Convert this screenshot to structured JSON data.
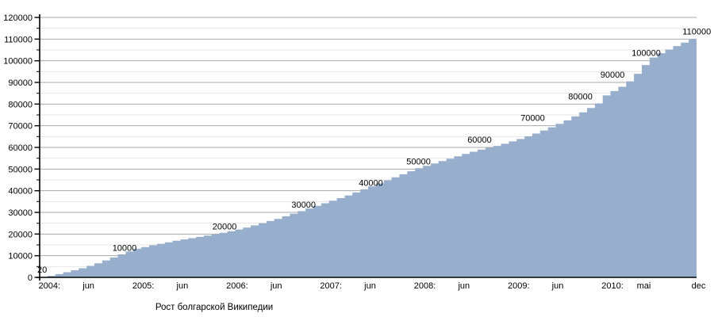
{
  "page": {
    "background": "#ffffff"
  },
  "chart_data": {
    "type": "area",
    "title": "Рост болгарской Википедии",
    "xlabel": "",
    "ylabel": "",
    "x_start": "2004-01",
    "x_end": "2010-12",
    "step": "monthly",
    "ylim": [
      0,
      120000
    ],
    "y_major_step": 10000,
    "y_minor_step": 5000,
    "grid": "on",
    "legend": "none",
    "y_tick_labels": [
      "0",
      "10000",
      "20000",
      "30000",
      "40000",
      "50000",
      "60000",
      "70000",
      "80000",
      "90000",
      "100000",
      "110000",
      "120000"
    ],
    "x_tick_labels": [
      {
        "label": "2004:",
        "month_index": 0
      },
      {
        "label": "jun",
        "month_index": 5
      },
      {
        "label": "2005:",
        "month_index": 12
      },
      {
        "label": "jun",
        "month_index": 17
      },
      {
        "label": "2006:",
        "month_index": 24
      },
      {
        "label": "jun",
        "month_index": 29
      },
      {
        "label": "2007:",
        "month_index": 36
      },
      {
        "label": "jun",
        "month_index": 41
      },
      {
        "label": "2008:",
        "month_index": 48
      },
      {
        "label": "jun",
        "month_index": 53
      },
      {
        "label": "2009:",
        "month_index": 60
      },
      {
        "label": "jun",
        "month_index": 65
      },
      {
        "label": "2010:",
        "month_index": 72
      },
      {
        "label": "mai",
        "month_index": 76
      },
      {
        "label": "dec",
        "month_index": 83
      }
    ],
    "values": [
      20,
      700,
      1500,
      2400,
      3300,
      4200,
      5300,
      6500,
      7800,
      9200,
      10600,
      12000,
      13200,
      14000,
      14800,
      15500,
      16200,
      16900,
      17500,
      18100,
      18700,
      19300,
      19900,
      20600,
      21300,
      22100,
      23000,
      24000,
      25000,
      26000,
      27000,
      28200,
      29400,
      30600,
      31800,
      33000,
      34200,
      35400,
      36600,
      37800,
      39200,
      40600,
      42000,
      43400,
      44800,
      46200,
      47600,
      49000,
      50400,
      51500,
      52600,
      53700,
      54800,
      55900,
      57000,
      58000,
      59000,
      59800,
      60700,
      61700,
      62800,
      63900,
      65100,
      66400,
      67800,
      69300,
      70900,
      72500,
      74300,
      76200,
      78200,
      80300,
      84000,
      86000,
      88000,
      90500,
      94000,
      98000,
      101500,
      103500,
      105200,
      106800,
      108400,
      110000
    ],
    "annotations": [
      {
        "label": "20",
        "value": 20,
        "month_index": -0.3
      },
      {
        "label": "10000",
        "value": 10000,
        "month_index": 9.3
      },
      {
        "label": "20000",
        "value": 20000,
        "month_index": 22.1
      },
      {
        "label": "30000",
        "value": 30000,
        "month_index": 32.2
      },
      {
        "label": "40000",
        "value": 40000,
        "month_index": 40.8
      },
      {
        "label": "50000",
        "value": 50000,
        "month_index": 46.9
      },
      {
        "label": "60000",
        "value": 60000,
        "month_index": 54.7
      },
      {
        "label": "70000",
        "value": 70000,
        "month_index": 61.5
      },
      {
        "label": "80000",
        "value": 80000,
        "month_index": 67.6
      },
      {
        "label": "90000",
        "value": 90000,
        "month_index": 71.7
      },
      {
        "label": "100000",
        "value": 100000,
        "month_index": 75.7
      },
      {
        "label": "110000",
        "value": 110000,
        "month_index": 82.2
      }
    ],
    "colors": {
      "fill": "#97afcc",
      "grid_major": "#a8a8a8",
      "grid_minor": "#e4e4e4",
      "axis": "#000000",
      "text": "#000000",
      "background": "#ffffff"
    }
  }
}
